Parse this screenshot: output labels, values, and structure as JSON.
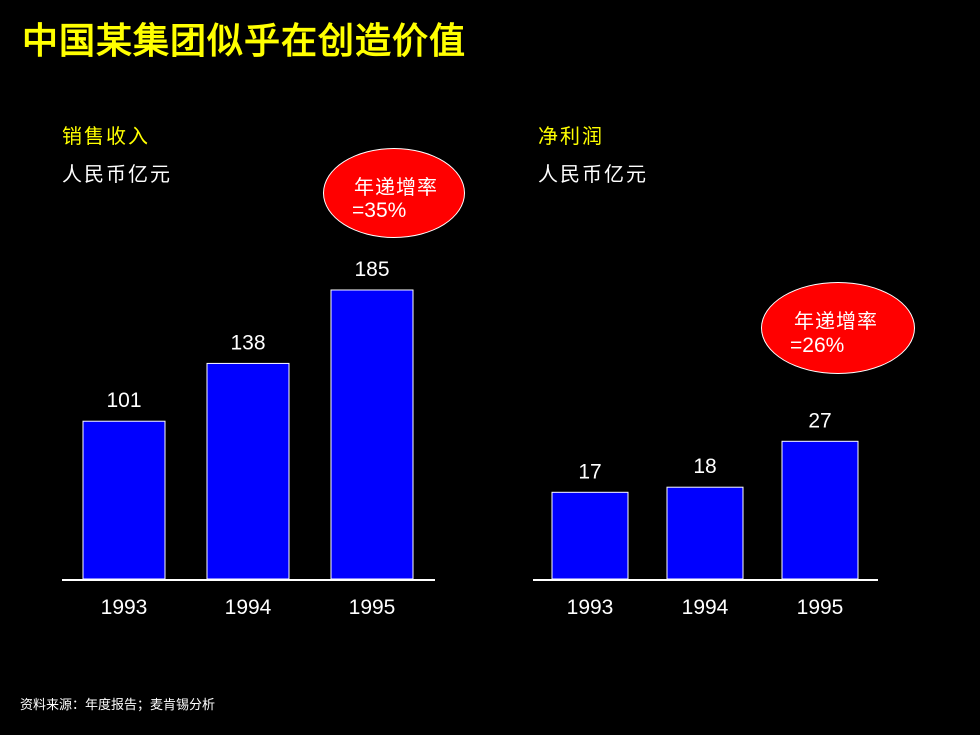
{
  "title": "中国某集团似乎在创造价值",
  "chart_data": [
    {
      "type": "bar",
      "title": "销售收入",
      "ylabel": "人民币亿元",
      "categories": [
        "1993",
        "1994",
        "1995"
      ],
      "values": [
        101,
        138,
        185
      ],
      "growth_label_line1": "年递增率",
      "growth_label_line2": "=35%",
      "bar_color": "#0000ff"
    },
    {
      "type": "bar",
      "title": "净利润",
      "ylabel": "人民币亿元",
      "categories": [
        "1993",
        "1994",
        "1995"
      ],
      "values": [
        17,
        18,
        27
      ],
      "growth_label_line1": "年递增率",
      "growth_label_line2": "=26%",
      "bar_color": "#0000ff"
    }
  ],
  "source": "资料来源：年度报告；麦肯锡分析",
  "colors": {
    "background": "#000000",
    "title": "#ffff00",
    "growth_badge": "#ff0000"
  }
}
